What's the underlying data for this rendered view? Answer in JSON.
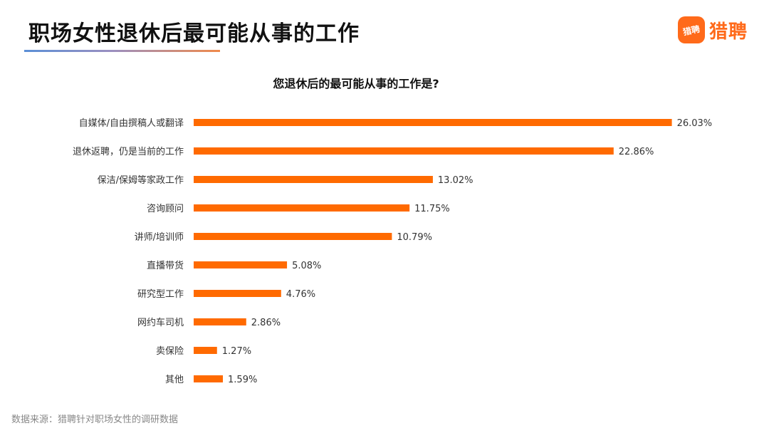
{
  "header": {
    "title": "职场女性退休后最可能从事的工作",
    "logo_badge": "猎聘",
    "logo_text": "猎聘"
  },
  "colors": {
    "bar": "#ff6a00",
    "brand": "#ff6a1a"
  },
  "chart_data": {
    "type": "bar",
    "orientation": "horizontal",
    "title": "您退休后的最可能从事的工作是?",
    "categories": [
      "自媒体/自由撰稿人或翻译",
      "退休返聘，仍是当前的工作",
      "保洁/保姆等家政工作",
      "咨询顾问",
      "讲师/培训师",
      "直播带货",
      "研究型工作",
      "网约车司机",
      "卖保险",
      "其他"
    ],
    "values": [
      26.03,
      22.86,
      13.02,
      11.75,
      10.79,
      5.08,
      4.76,
      2.86,
      1.27,
      1.59
    ],
    "value_labels": [
      "26.03%",
      "22.86%",
      "13.02%",
      "11.75%",
      "10.79%",
      "5.08%",
      "4.76%",
      "2.86%",
      "1.27%",
      "1.59%"
    ],
    "xlim": [
      0,
      30
    ],
    "grid": false,
    "legend": "none"
  },
  "footer": {
    "source": "数据来源：猎聘针对职场女性的调研数据"
  }
}
